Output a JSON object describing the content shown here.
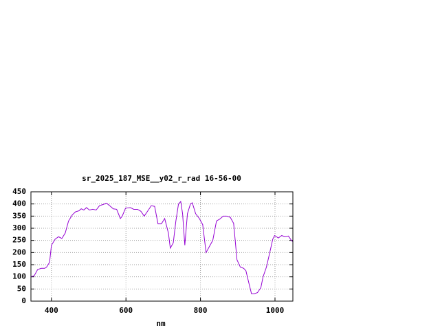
{
  "chart_data": {
    "type": "line",
    "title": "sr_2025_187_MSE__y02_r_rad 16-56-00",
    "x_label": "nm",
    "color": "#9400d3",
    "grid": true,
    "xlim": [
      345,
      1048
    ],
    "ylim": [
      0,
      450
    ],
    "xticks": [
      400,
      600,
      800,
      1000
    ],
    "yticks": [
      0,
      50,
      100,
      150,
      200,
      250,
      300,
      350,
      400,
      450
    ],
    "x": [
      345,
      354,
      363,
      373,
      382,
      387,
      395,
      400,
      410,
      419,
      428,
      437,
      446,
      456,
      465,
      474,
      480,
      487,
      494,
      502,
      511,
      520,
      529,
      539,
      548,
      557,
      566,
      575,
      585,
      590,
      599,
      612,
      621,
      631,
      640,
      649,
      658,
      668,
      677,
      686,
      695,
      704,
      714,
      719,
      727,
      734,
      741,
      747,
      752,
      758,
      765,
      773,
      778,
      787,
      797,
      806,
      815,
      824,
      833,
      843,
      852,
      861,
      870,
      880,
      889,
      898,
      907,
      916,
      922,
      929,
      937,
      944,
      953,
      962,
      968,
      977,
      986,
      994,
      999,
      1009,
      1018,
      1027,
      1036,
      1044,
      1048
    ],
    "values": [
      100,
      105,
      130,
      135,
      135,
      140,
      160,
      230,
      255,
      265,
      258,
      280,
      330,
      355,
      368,
      372,
      380,
      375,
      385,
      375,
      378,
      375,
      393,
      398,
      403,
      392,
      380,
      378,
      340,
      350,
      383,
      385,
      378,
      378,
      370,
      350,
      370,
      393,
      390,
      318,
      318,
      340,
      280,
      218,
      240,
      330,
      400,
      410,
      360,
      230,
      360,
      400,
      405,
      360,
      340,
      315,
      200,
      225,
      250,
      330,
      338,
      350,
      350,
      345,
      320,
      170,
      140,
      135,
      125,
      80,
      30,
      30,
      35,
      55,
      100,
      140,
      200,
      255,
      270,
      260,
      270,
      265,
      268,
      250,
      245
    ]
  }
}
